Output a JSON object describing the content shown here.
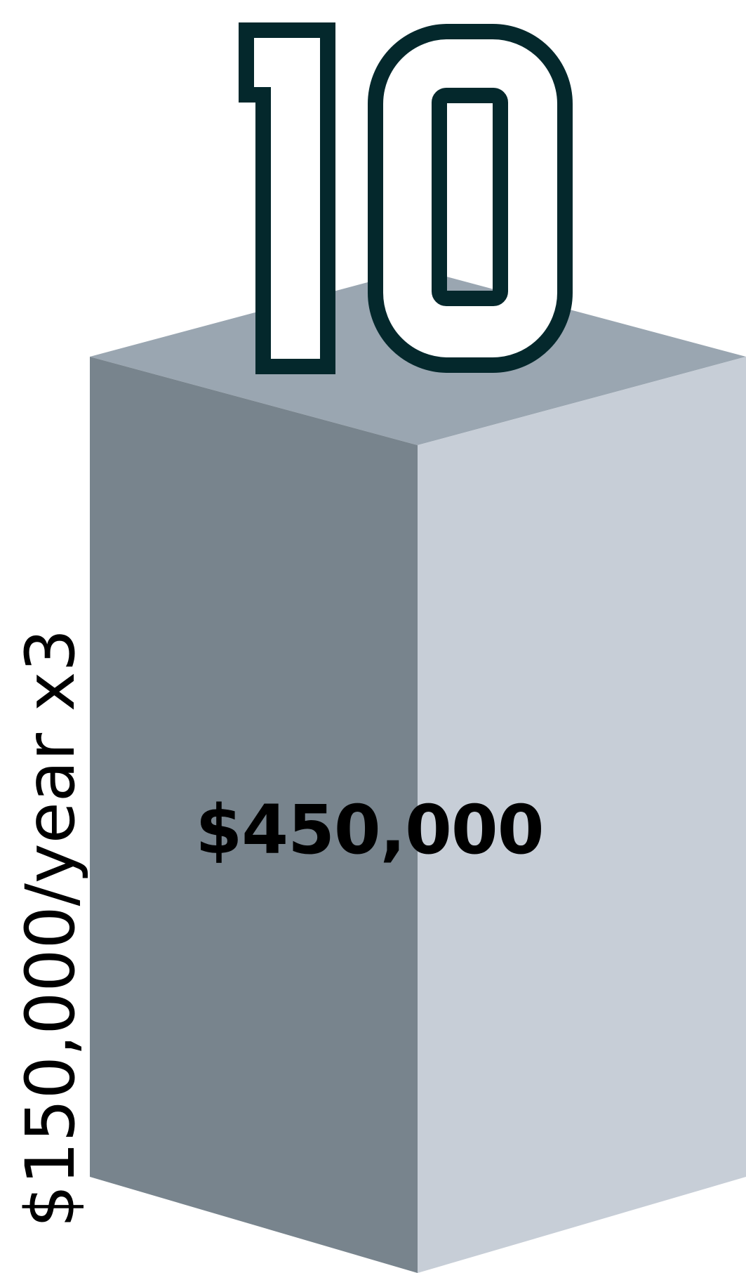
{
  "number_badge": {
    "value": "10",
    "stroke_color": "#04282C",
    "fill_color": "#FFFFFF"
  },
  "block": {
    "top_color": "#9AA6B1",
    "left_color": "#78848D",
    "right_color": "#C7CED7"
  },
  "total": {
    "label": "$450,000"
  },
  "side": {
    "label": "$150,000/year x3"
  }
}
